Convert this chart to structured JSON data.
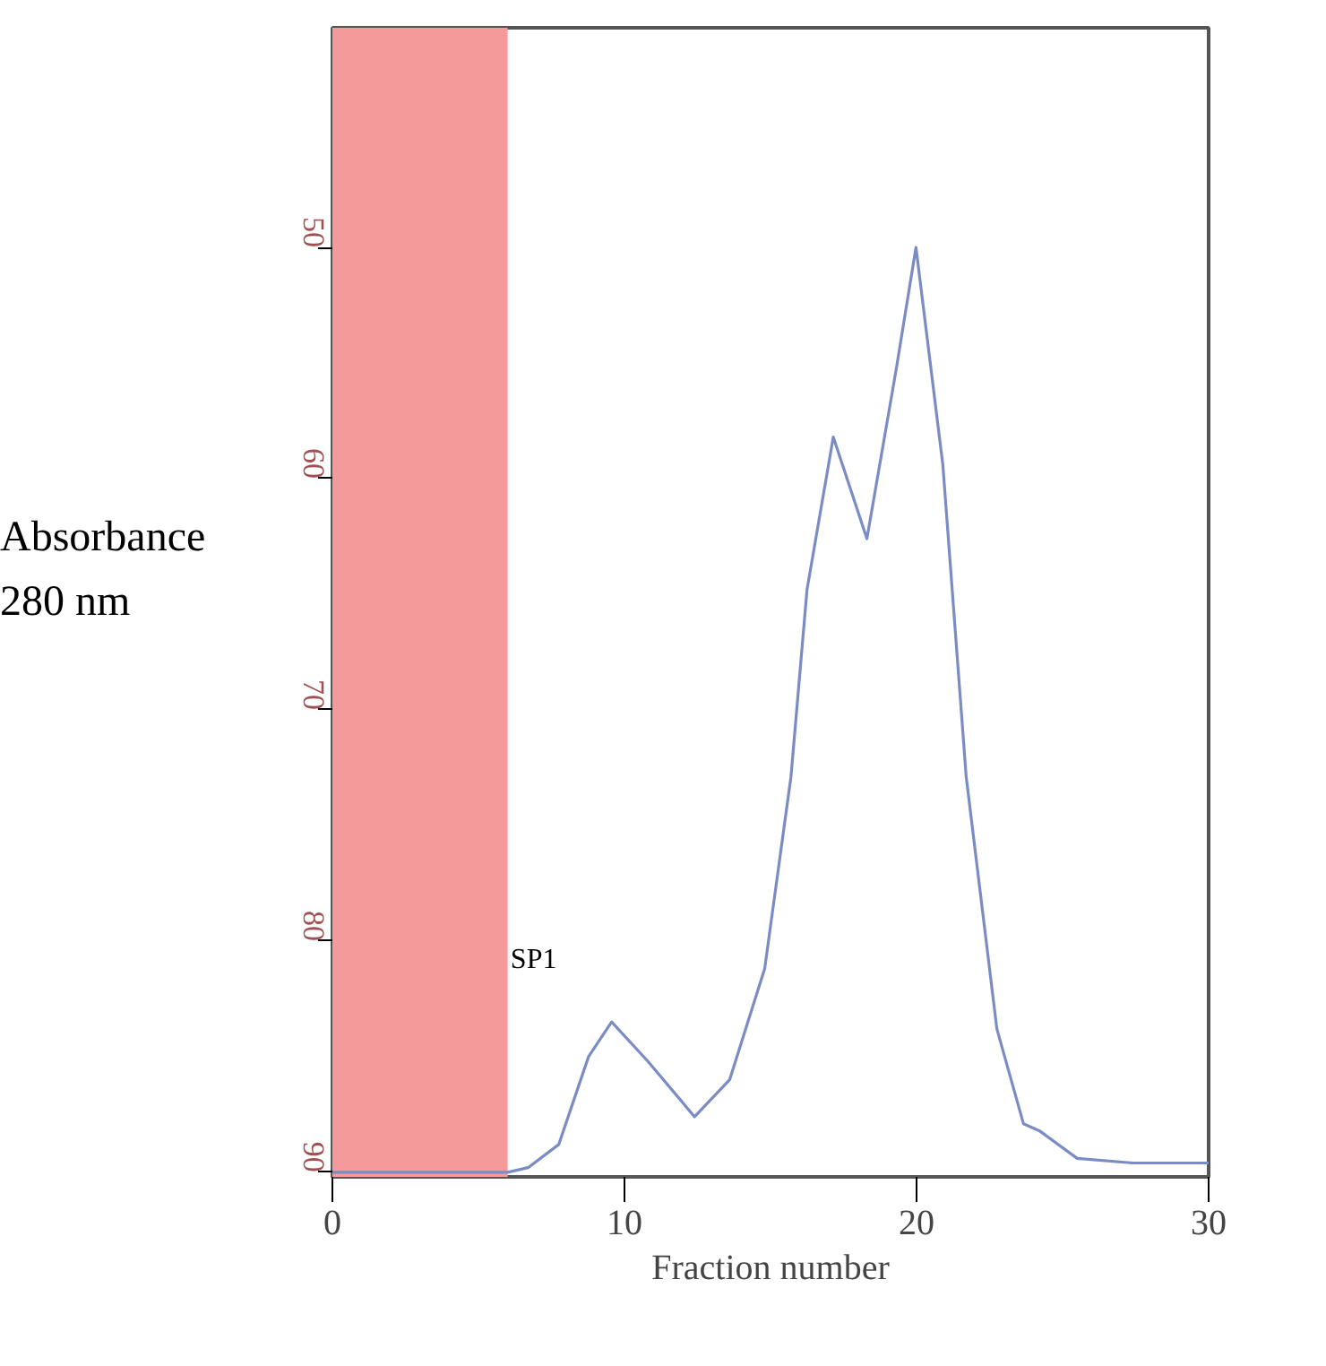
{
  "chart_data": {
    "type": "line",
    "xlabel": "Fraction number",
    "ylabel": "Absorbance 280 nm",
    "xlim": [
      0,
      30
    ],
    "xticks": [
      0,
      10,
      20,
      30
    ],
    "ylim": [
      90.2,
      40.5
    ],
    "yticks": [
      50,
      60,
      70,
      80,
      90
    ],
    "series": [
      {
        "color": "#7b8cc4",
        "x": [
          0,
          6,
          6.7,
          7.75,
          8.77,
          9.56,
          10.8,
          12.4,
          13.6,
          14.8,
          15.7,
          16.25,
          17.15,
          18.3,
          19.3,
          19.98,
          20.9,
          21.7,
          22.75,
          23.66,
          24.2,
          25.5,
          27.4,
          30
        ],
        "values": [
          90,
          90,
          89.8,
          88.8,
          85.0,
          83.5,
          85.2,
          87.6,
          86.0,
          81.2,
          72.9,
          64.8,
          58.2,
          62.6,
          55.3,
          50.0,
          59.4,
          72.9,
          83.8,
          87.9,
          88.2,
          89.4,
          89.6,
          89.6
        ]
      }
    ],
    "bands": [
      {
        "axis": "x",
        "from": 0,
        "to": 6,
        "color": "#f59a9a"
      }
    ],
    "annotations": [
      {
        "text": "SP1",
        "x": 6.1,
        "y": 80.8
      }
    ],
    "grid": false,
    "marker": "none",
    "line_style": "solid"
  }
}
